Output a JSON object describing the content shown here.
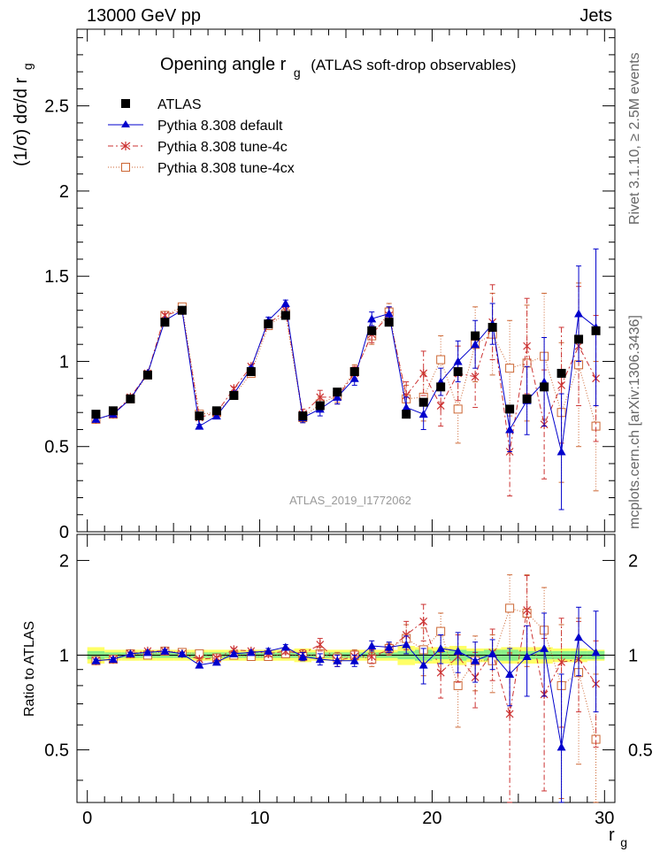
{
  "header": {
    "left": "13000 GeV pp",
    "right": "Jets"
  },
  "side_text": {
    "rivet": "Rivet 3.1.10, ≥ 2.5M events",
    "mcplots": "mcplots.cern.ch [arXiv:1306.3436]"
  },
  "chart_data": [
    {
      "type": "scatter",
      "panel": "main",
      "title": "Opening angle r_g (ATLAS soft-drop observables)",
      "title_main": "Opening angle r",
      "title_sub": "g",
      "title_rest": "(ATLAS soft-drop observables)",
      "ylabel": "(1/σ) dσ/d r",
      "ylabel_sub": "g",
      "watermark": "ATLAS_2019_I1772062",
      "xlim": [
        -0.6,
        30.6
      ],
      "ylim": [
        0,
        2.95
      ],
      "yticks": [
        0,
        0.5,
        1,
        1.5,
        2,
        2.5
      ],
      "ytick_labels": [
        "0",
        "0.5",
        "1",
        "1.5",
        "2",
        "2.5"
      ],
      "legend_position": "top-left",
      "x": [
        0.5,
        1.5,
        2.5,
        3.5,
        4.5,
        5.5,
        6.5,
        7.5,
        8.5,
        9.5,
        10.5,
        11.5,
        12.5,
        13.5,
        14.5,
        15.5,
        16.5,
        17.5,
        18.5,
        19.5,
        20.5,
        21.5,
        22.5,
        23.5,
        24.5,
        25.5,
        26.5,
        27.5,
        28.5,
        29.5
      ],
      "series": [
        {
          "name": "ATLAS",
          "style": "data",
          "color": "#000000",
          "values": [
            0.69,
            0.71,
            0.78,
            0.92,
            1.23,
            1.3,
            0.68,
            0.71,
            0.8,
            0.94,
            1.22,
            1.27,
            0.68,
            0.74,
            0.82,
            0.94,
            1.18,
            1.23,
            0.69,
            0.76,
            0.85,
            0.94,
            1.15,
            1.2,
            0.72,
            0.78,
            0.85,
            0.93,
            1.13,
            1.18
          ]
        },
        {
          "name": "Pythia 8.308 default",
          "style": "solid-triangle",
          "color": "#0000cc",
          "values": [
            0.66,
            0.69,
            0.78,
            0.93,
            1.24,
            1.3,
            0.62,
            0.68,
            0.81,
            0.96,
            1.24,
            1.34,
            0.67,
            0.72,
            0.79,
            0.9,
            1.25,
            1.28,
            0.73,
            0.69,
            0.88,
            1.0,
            1.1,
            1.22,
            0.6,
            0.77,
            0.88,
            0.47,
            1.28,
            1.2
          ],
          "errors": [
            0.005,
            0.005,
            0.005,
            0.005,
            0.01,
            0.01,
            0.01,
            0.01,
            0.01,
            0.01,
            0.02,
            0.02,
            0.03,
            0.04,
            0.04,
            0.04,
            0.04,
            0.04,
            0.06,
            0.09,
            0.08,
            0.12,
            0.14,
            0.12,
            0.13,
            0.2,
            0.26,
            0.34,
            0.28,
            0.46
          ]
        },
        {
          "name": "Pythia 8.308 tune-4c",
          "style": "dashdot-star",
          "color": "#cc3333",
          "values": [
            0.66,
            0.69,
            0.79,
            0.93,
            1.27,
            1.3,
            0.67,
            0.7,
            0.84,
            0.97,
            1.22,
            1.3,
            0.69,
            0.79,
            0.79,
            0.93,
            1.16,
            1.27,
            0.8,
            0.93,
            0.74,
            0.93,
            0.91,
            1.23,
            0.47,
            1.09,
            0.63,
            0.86,
            1.09,
            0.9
          ],
          "errors": [
            0.005,
            0.005,
            0.005,
            0.005,
            0.01,
            0.01,
            0.01,
            0.01,
            0.01,
            0.01,
            0.02,
            0.02,
            0.03,
            0.04,
            0.04,
            0.04,
            0.05,
            0.05,
            0.08,
            0.13,
            0.12,
            0.16,
            0.18,
            0.22,
            0.26,
            0.28,
            0.32,
            0.34,
            0.35,
            0.37
          ]
        },
        {
          "name": "Pythia 8.308 tune-4cx",
          "style": "dotted-square",
          "color": "#cc6633",
          "values": [
            0.66,
            0.69,
            0.78,
            0.92,
            1.27,
            1.32,
            0.69,
            0.7,
            0.8,
            0.93,
            1.21,
            1.28,
            0.67,
            0.75,
            0.8,
            0.94,
            1.15,
            1.29,
            0.78,
            0.79,
            1.01,
            0.72,
            1.1,
            1.16,
            0.96,
            0.99,
            1.03,
            0.7,
            0.98,
            0.62
          ],
          "errors": [
            0.005,
            0.005,
            0.005,
            0.005,
            0.01,
            0.01,
            0.01,
            0.01,
            0.01,
            0.01,
            0.02,
            0.02,
            0.03,
            0.04,
            0.04,
            0.04,
            0.05,
            0.05,
            0.08,
            0.14,
            0.14,
            0.2,
            0.22,
            0.24,
            0.28,
            0.34,
            0.37,
            0.41,
            0.48,
            0.38
          ]
        }
      ]
    },
    {
      "type": "scatter",
      "panel": "ratio",
      "ylabel": "Ratio to ATLAS",
      "xlabel": "r",
      "xlabel_sub": "g",
      "xlim": [
        -0.6,
        30.6
      ],
      "ylim": [
        0.34,
        2.42
      ],
      "xticks": [
        0,
        10,
        20,
        30
      ],
      "xtick_labels": [
        "0",
        "10",
        "20",
        "30"
      ],
      "yticks": [
        0.5,
        1,
        2
      ],
      "ytick_labels": [
        "0.5",
        "1",
        "2"
      ],
      "band_stat": [
        0.03,
        0.02,
        0.02,
        0.02,
        0.02,
        0.02,
        0.02,
        0.02,
        0.02,
        0.02,
        0.02,
        0.02,
        0.02,
        0.02,
        0.02,
        0.02,
        0.02,
        0.02,
        0.03,
        0.04,
        0.03,
        0.04,
        0.03,
        0.04,
        0.04,
        0.03,
        0.03,
        0.03,
        0.03,
        0.03
      ],
      "band_total": [
        0.06,
        0.04,
        0.04,
        0.04,
        0.04,
        0.04,
        0.04,
        0.04,
        0.04,
        0.04,
        0.04,
        0.04,
        0.05,
        0.04,
        0.04,
        0.04,
        0.04,
        0.04,
        0.07,
        0.06,
        0.06,
        0.07,
        0.05,
        0.05,
        0.06,
        0.06,
        0.06,
        0.05,
        0.05,
        0.04
      ],
      "series": [
        {
          "name": "Pythia 8.308 default",
          "values": [
            0.96,
            0.97,
            1.01,
            1.02,
            1.03,
            1.01,
            0.93,
            0.95,
            1.01,
            1.02,
            1.03,
            1.06,
            0.99,
            0.97,
            0.96,
            0.96,
            1.07,
            1.06,
            1.08,
            0.93,
            1.05,
            1.03,
            0.96,
            1.01,
            0.87,
            0.99,
            1.05,
            0.51,
            1.14,
            1.02
          ],
          "errors": [
            0.01,
            0.01,
            0.01,
            0.01,
            0.01,
            0.01,
            0.01,
            0.01,
            0.01,
            0.01,
            0.02,
            0.02,
            0.03,
            0.04,
            0.04,
            0.04,
            0.04,
            0.04,
            0.07,
            0.12,
            0.11,
            0.15,
            0.14,
            0.11,
            0.18,
            0.25,
            0.31,
            0.36,
            0.28,
            0.36
          ]
        },
        {
          "name": "Pythia 8.308 tune-4c",
          "values": [
            0.96,
            0.97,
            1.01,
            1.03,
            1.03,
            1.01,
            0.97,
            0.98,
            1.04,
            1.03,
            1.01,
            1.03,
            1.01,
            1.08,
            0.96,
            0.99,
            0.99,
            1.04,
            1.16,
            1.28,
            0.88,
            0.99,
            0.85,
            1.02,
            0.65,
            1.39,
            0.75,
            0.95,
            0.97,
            0.81
          ],
          "errors": [
            0.01,
            0.01,
            0.01,
            0.01,
            0.01,
            0.01,
            0.01,
            0.01,
            0.01,
            0.01,
            0.02,
            0.02,
            0.03,
            0.05,
            0.04,
            0.04,
            0.05,
            0.04,
            0.12,
            0.17,
            0.15,
            0.17,
            0.17,
            0.19,
            0.36,
            0.4,
            0.38,
            0.36,
            0.31,
            0.3
          ]
        },
        {
          "name": "Pythia 8.308 tune-4cx",
          "values": [
            0.96,
            0.97,
            1.01,
            1.0,
            1.03,
            1.02,
            1.01,
            0.98,
            1.0,
            0.99,
            0.99,
            1.01,
            0.99,
            1.01,
            0.98,
            1.0,
            0.97,
            1.05,
            1.13,
            1.04,
            1.19,
            0.8,
            0.96,
            0.96,
            1.41,
            1.36,
            1.2,
            0.8,
            0.88,
            0.54
          ],
          "errors": [
            0.01,
            0.01,
            0.01,
            0.01,
            0.01,
            0.01,
            0.01,
            0.01,
            0.01,
            0.01,
            0.02,
            0.02,
            0.03,
            0.05,
            0.04,
            0.04,
            0.05,
            0.04,
            0.12,
            0.18,
            0.17,
            0.21,
            0.19,
            0.2,
            0.39,
            0.44,
            0.44,
            0.45,
            0.43,
            0.33
          ]
        }
      ]
    }
  ]
}
